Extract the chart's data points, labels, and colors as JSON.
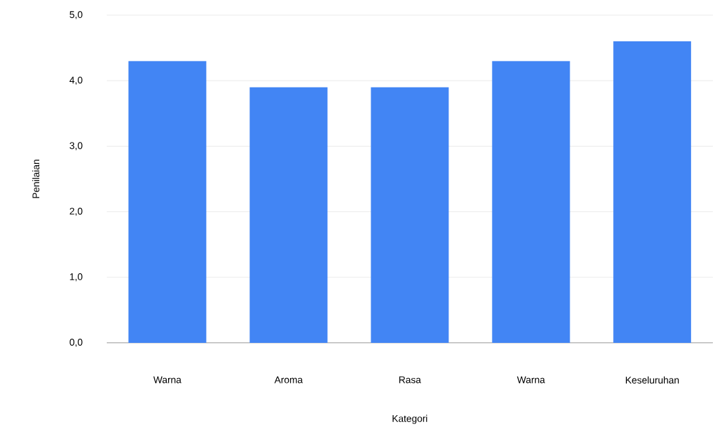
{
  "chart_data": {
    "type": "bar",
    "xlabel": "Kategori",
    "ylabel": "Penilaian",
    "categories": [
      "Warna",
      "Aroma",
      "Rasa",
      "Warna",
      "Keseluruhan"
    ],
    "values": [
      4.3,
      3.9,
      3.9,
      4.3,
      4.6
    ],
    "color": "#4285f4",
    "ylim": [
      0,
      5
    ],
    "yticks": [
      {
        "value": 0,
        "label": "0,0"
      },
      {
        "value": 1,
        "label": "1,0"
      },
      {
        "value": 2,
        "label": "2,0"
      },
      {
        "value": 3,
        "label": "3,0"
      },
      {
        "value": 4,
        "label": "4,0"
      },
      {
        "value": 5,
        "label": "5,0"
      }
    ],
    "grid": "y"
  }
}
